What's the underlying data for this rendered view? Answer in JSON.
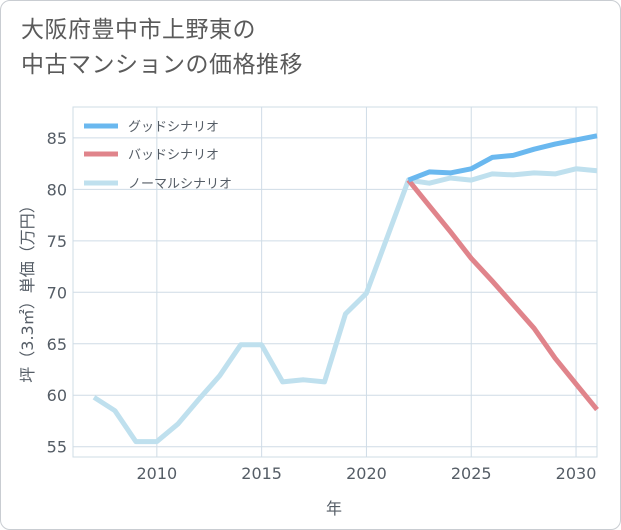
{
  "title_line1": "大阪府豊中市上野東の",
  "title_line2": "中古マンションの価格推移",
  "chart_data": {
    "type": "line",
    "title": "大阪府豊中市上野東の中古マンションの価格推移",
    "xlabel": "年",
    "ylabel": "坪（3.3㎡）単価（万円）",
    "xlim": [
      2006,
      2031
    ],
    "ylim": [
      54,
      88
    ],
    "xticks": [
      2010,
      2015,
      2020,
      2025,
      2030
    ],
    "yticks": [
      55,
      60,
      65,
      70,
      75,
      80,
      85
    ],
    "grid": true,
    "legend_position": "top-left",
    "series": [
      {
        "name": "グッドシナリオ",
        "color": "#6ab8ef",
        "x": [
          2022,
          2023,
          2024,
          2025,
          2026,
          2027,
          2028,
          2029,
          2030,
          2031
        ],
        "y": [
          80.9,
          81.7,
          81.6,
          82.0,
          83.1,
          83.3,
          83.9,
          84.4,
          84.8,
          85.2
        ]
      },
      {
        "name": "バッドシナリオ",
        "color": "#e0848b",
        "x": [
          2022,
          2023,
          2024,
          2025,
          2026,
          2027,
          2028,
          2029,
          2030,
          2031
        ],
        "y": [
          80.9,
          78.4,
          75.9,
          73.3,
          71.1,
          68.8,
          66.5,
          63.6,
          61.1,
          58.6
        ]
      },
      {
        "name": "ノーマルシナリオ",
        "color": "#bfe0ee",
        "x": [
          2007,
          2008,
          2009,
          2010,
          2011,
          2012,
          2013,
          2014,
          2015,
          2016,
          2017,
          2018,
          2019,
          2020,
          2021,
          2022,
          2023,
          2024,
          2025,
          2026,
          2027,
          2028,
          2029,
          2030,
          2031
        ],
        "y": [
          59.8,
          58.5,
          55.5,
          55.5,
          57.2,
          59.6,
          61.9,
          64.9,
          64.9,
          61.3,
          61.5,
          61.3,
          67.9,
          69.9,
          75.4,
          80.9,
          80.6,
          81.1,
          80.9,
          81.5,
          81.4,
          81.6,
          81.5,
          82.0,
          81.8
        ]
      }
    ]
  }
}
